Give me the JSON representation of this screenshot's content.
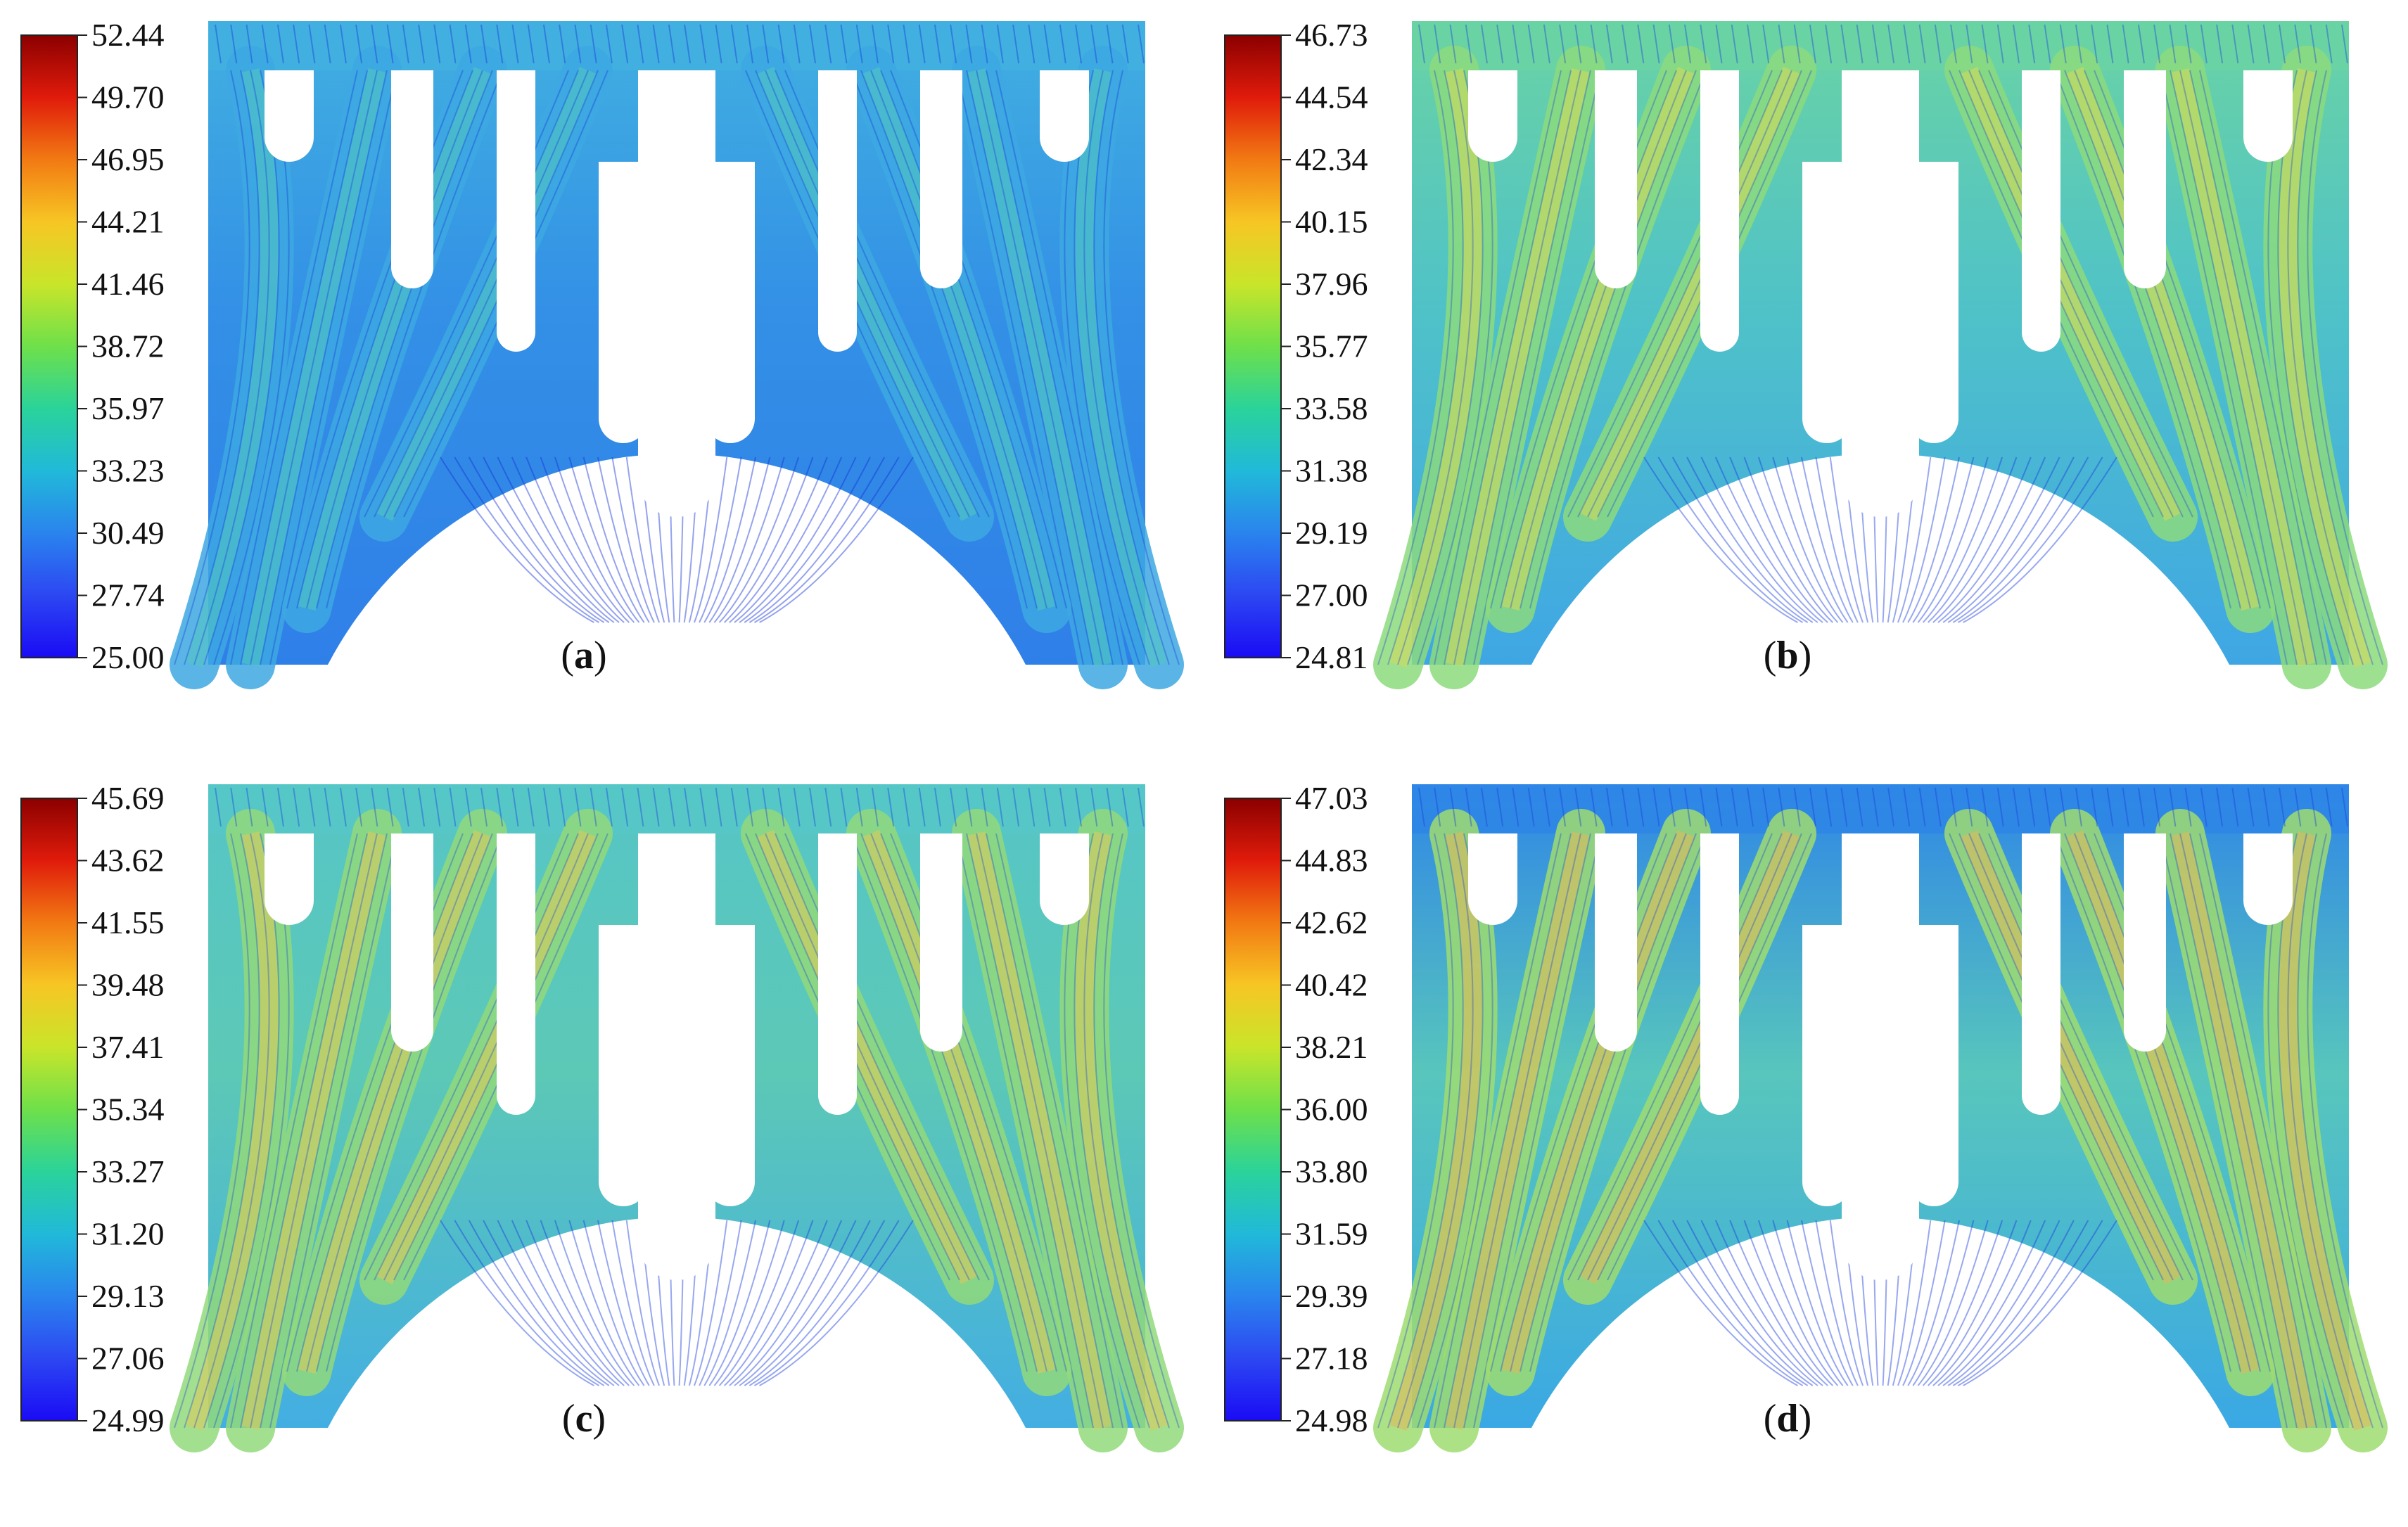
{
  "panels": [
    {
      "label": "a",
      "scale": [
        "52.44",
        "49.70",
        "46.95",
        "44.21",
        "41.46",
        "38.72",
        "35.97",
        "33.23",
        "30.49",
        "27.74",
        "25.00"
      ],
      "field": {
        "base": "#2f7fe8",
        "top": "#41b0e0",
        "mid": "#3390e6",
        "channel": "#3da8e2",
        "hot": "#52c6c0",
        "line": "#1533d8"
      }
    },
    {
      "label": "b",
      "scale": [
        "46.73",
        "44.54",
        "42.34",
        "40.15",
        "37.96",
        "35.77",
        "33.58",
        "31.38",
        "29.19",
        "27.00",
        "24.81"
      ],
      "field": {
        "base": "#3fa6e4",
        "top": "#6ad3a4",
        "mid": "#4fc2c8",
        "channel": "#8cdb7c",
        "hot": "#d6d85a",
        "line": "#1a40db"
      }
    },
    {
      "label": "c",
      "scale": [
        "45.69",
        "43.62",
        "41.55",
        "39.48",
        "37.41",
        "35.34",
        "33.27",
        "31.20",
        "29.13",
        "27.06",
        "24.99"
      ],
      "field": {
        "base": "#43aee2",
        "top": "#56c6c6",
        "mid": "#5cc8b6",
        "channel": "#92d97a",
        "hot": "#e0c85a",
        "line": "#1a3fdc"
      }
    },
    {
      "label": "d",
      "scale": [
        "47.03",
        "44.83",
        "42.62",
        "40.42",
        "38.21",
        "36.00",
        "33.80",
        "31.59",
        "29.39",
        "27.18",
        "24.98"
      ],
      "field": {
        "base": "#3aa8e4",
        "top": "#2f86e6",
        "mid": "#58c6bc",
        "channel": "#9fdc70",
        "hot": "#e2b85a",
        "line": "#1a3ddc"
      }
    }
  ]
}
